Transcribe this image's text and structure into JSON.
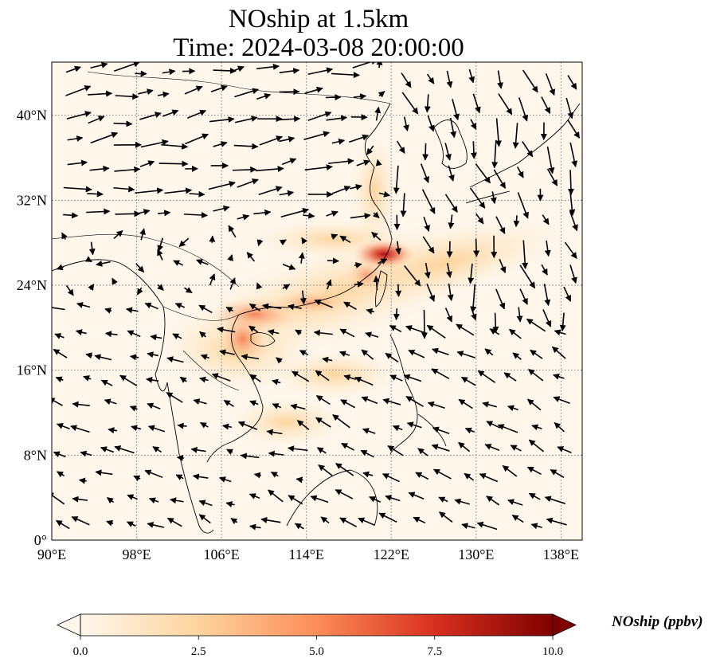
{
  "title": {
    "line1": "NOship at 1.5km",
    "line2": "Time: 2024-03-08 20:00:00"
  },
  "map": {
    "projection": "PlateCarree",
    "lon_range": [
      90,
      140
    ],
    "lat_range": [
      0,
      45
    ],
    "gridlines": "dotted",
    "lon_ticks": [
      {
        "value": 90,
        "label": "90°E"
      },
      {
        "value": 98,
        "label": "98°E"
      },
      {
        "value": 106,
        "label": "106°E"
      },
      {
        "value": 114,
        "label": "114°E"
      },
      {
        "value": 122,
        "label": "122°E"
      },
      {
        "value": 130,
        "label": "130°E"
      },
      {
        "value": 138,
        "label": "138°E"
      }
    ],
    "lat_ticks": [
      {
        "value": 0,
        "label": "0°"
      },
      {
        "value": 8,
        "label": "8°N"
      },
      {
        "value": 16,
        "label": "16°N"
      },
      {
        "value": 24,
        "label": "24°N"
      },
      {
        "value": 32,
        "label": "32°N"
      },
      {
        "value": 40,
        "label": "40°N"
      }
    ],
    "field": "NOship concentration (ppbv)",
    "hotspots": [
      {
        "lon": 121.8,
        "lat": 27.2,
        "value": 8.5
      },
      {
        "lon": 109.0,
        "lat": 21.5,
        "value": 4.8
      },
      {
        "lon": 108.0,
        "lat": 19.0,
        "value": 3.5
      },
      {
        "lon": 115.0,
        "lat": 22.0,
        "value": 2.8
      },
      {
        "lon": 120.0,
        "lat": 24.5,
        "value": 3.0
      }
    ],
    "wind_vectors": "quiver arrows, mostly westerly in north, north-easterly over sea"
  },
  "colorbar": {
    "label": "NOship (ppbv)",
    "min": 0.0,
    "max": 10.0,
    "colormap": "OrRd",
    "extend": "both",
    "ticks": [
      {
        "value": 0.0,
        "label": "0.0"
      },
      {
        "value": 2.5,
        "label": "2.5"
      },
      {
        "value": 5.0,
        "label": "5.0"
      },
      {
        "value": 7.5,
        "label": "7.5"
      },
      {
        "value": 10.0,
        "label": "10.0"
      }
    ],
    "colors": [
      "#fff7ec",
      "#fdd49e",
      "#fc8d59",
      "#d7301f",
      "#7f0000"
    ]
  }
}
